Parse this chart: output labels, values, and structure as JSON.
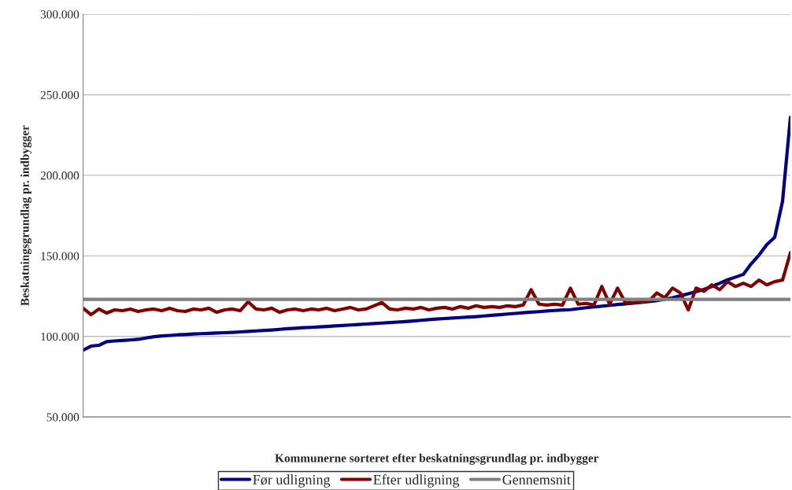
{
  "chart_data": {
    "type": "line",
    "xlabel": "Kommunerne sorteret efter beskatningsgrundlag pr. indbygger",
    "ylabel": "Beskatningsgrundlag pr. indbygger",
    "categories": [
      null,
      null,
      null,
      null,
      null,
      null,
      null,
      null,
      null,
      null,
      null,
      null,
      null,
      null,
      null,
      null,
      null,
      null,
      null,
      null,
      null,
      null,
      null,
      null,
      null,
      null,
      null,
      null,
      null,
      null,
      null,
      null,
      null,
      null,
      null,
      null,
      null,
      null,
      null,
      null,
      null,
      null,
      null,
      null,
      null,
      null,
      null,
      null,
      null,
      null,
      null,
      null,
      null,
      null,
      null,
      null,
      null,
      null,
      null,
      null,
      null,
      null,
      null,
      null,
      null,
      null,
      null,
      null,
      null,
      null,
      null,
      null,
      null,
      null,
      null,
      null,
      null,
      null,
      null,
      null,
      null,
      null,
      null,
      null,
      null,
      null,
      null,
      null,
      null,
      null,
      null
    ],
    "series": [
      {
        "name": "Før udligning",
        "color": "#000080",
        "values": [
          91500,
          94000,
          94500,
          96800,
          97200,
          97500,
          97800,
          98200,
          99000,
          99800,
          100300,
          100600,
          101000,
          101200,
          101500,
          101700,
          101900,
          102100,
          102300,
          102500,
          102800,
          103100,
          103400,
          103700,
          104000,
          104400,
          104800,
          105100,
          105400,
          105600,
          105900,
          106200,
          106500,
          106800,
          107100,
          107400,
          107700,
          108000,
          108300,
          108600,
          108900,
          109200,
          109600,
          110000,
          110400,
          110800,
          111100,
          111400,
          111700,
          112000,
          112300,
          112700,
          113100,
          113500,
          113900,
          114300,
          114700,
          115100,
          115400,
          115800,
          116100,
          116400,
          116600,
          117200,
          117800,
          118300,
          118800,
          119300,
          119800,
          120200,
          120700,
          121200,
          121600,
          122300,
          123100,
          124000,
          125200,
          126500,
          127800,
          129200,
          131000,
          133000,
          135200,
          136800,
          138500,
          145000,
          150500,
          157000,
          161500,
          184000,
          236000
        ]
      },
      {
        "name": "Efter udligning",
        "color": "#800000",
        "values": [
          117500,
          113500,
          117000,
          114500,
          116500,
          116000,
          117000,
          115500,
          116500,
          117000,
          116000,
          117500,
          116000,
          115500,
          117000,
          116500,
          117500,
          115000,
          116500,
          117000,
          116000,
          121500,
          117000,
          116500,
          117500,
          115000,
          116500,
          117000,
          116000,
          117000,
          116500,
          117500,
          116000,
          117000,
          118000,
          116500,
          117000,
          119000,
          121000,
          117000,
          116500,
          117500,
          117000,
          118000,
          116500,
          117500,
          118000,
          117000,
          118500,
          117500,
          119000,
          118000,
          118500,
          118000,
          119000,
          118500,
          119500,
          129000,
          120000,
          119500,
          120000,
          119500,
          130000,
          120000,
          120500,
          119500,
          131000,
          120000,
          130000,
          121000,
          121000,
          121500,
          122000,
          127000,
          124000,
          130000,
          127000,
          116500,
          130000,
          128000,
          132000,
          129000,
          134000,
          131000,
          133000,
          131000,
          135000,
          132000,
          134000,
          135000,
          152000
        ]
      },
      {
        "name": "Gennemsnit",
        "color": "#808080",
        "values": [
          123000,
          123000,
          123000,
          123000,
          123000,
          123000,
          123000,
          123000,
          123000,
          123000,
          123000,
          123000,
          123000,
          123000,
          123000,
          123000,
          123000,
          123000,
          123000,
          123000,
          123000,
          123000,
          123000,
          123000,
          123000,
          123000,
          123000,
          123000,
          123000,
          123000,
          123000,
          123000,
          123000,
          123000,
          123000,
          123000,
          123000,
          123000,
          123000,
          123000,
          123000,
          123000,
          123000,
          123000,
          123000,
          123000,
          123000,
          123000,
          123000,
          123000,
          123000,
          123000,
          123000,
          123000,
          123000,
          123000,
          123000,
          123000,
          123000,
          123000,
          123000,
          123000,
          123000,
          123000,
          123000,
          123000,
          123000,
          123000,
          123000,
          123000,
          123000,
          123000,
          123000,
          123000,
          123000,
          123000,
          123000,
          123000,
          123000,
          123000,
          123000,
          123000,
          123000,
          123000,
          123000,
          123000,
          123000,
          123000,
          123000,
          123000,
          123000
        ]
      }
    ],
    "ylim": [
      50000,
      300000
    ],
    "yticks": [
      {
        "value": 50000,
        "label": "50.000"
      },
      {
        "value": 100000,
        "label": "100.000"
      },
      {
        "value": 150000,
        "label": "150.000"
      },
      {
        "value": 200000,
        "label": "200.000"
      },
      {
        "value": 250000,
        "label": "250.000"
      },
      {
        "value": 300000,
        "label": "300.000"
      }
    ],
    "grid": "y",
    "legend": "bottom",
    "line_style": "solid",
    "marker": "none"
  }
}
